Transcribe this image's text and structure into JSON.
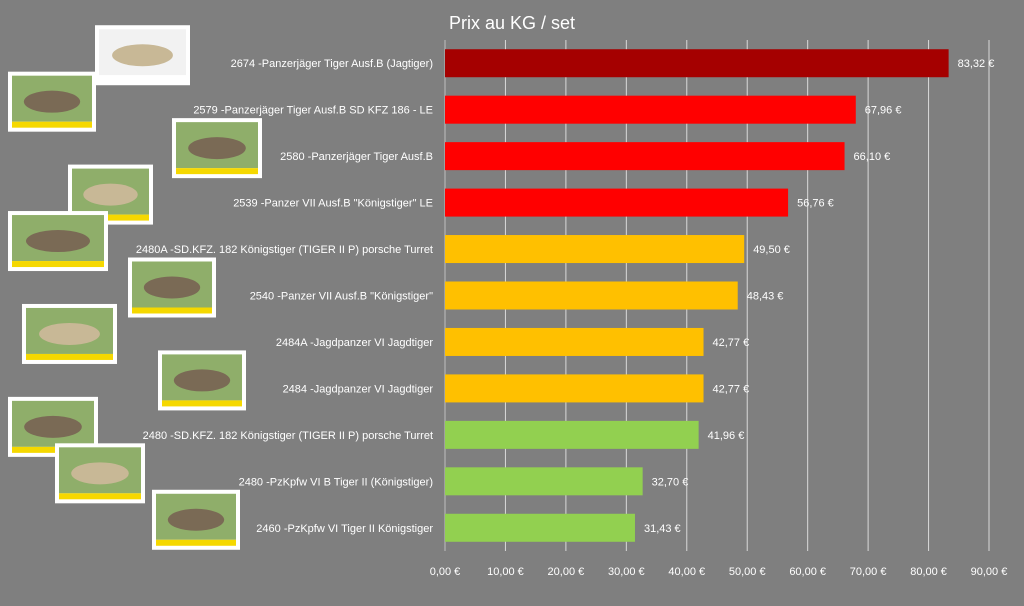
{
  "chart_data": {
    "type": "bar",
    "orientation": "horizontal",
    "title": "Prix au KG / set",
    "xlabel": "",
    "ylabel": "",
    "xlim": [
      0,
      90
    ],
    "grid": true,
    "legend": "none",
    "x_ticks": [
      "0,00 €",
      "10,00 €",
      "20,00 €",
      "30,00 €",
      "40,00 €",
      "50,00 €",
      "60,00 €",
      "70,00 €",
      "80,00 €",
      "90,00 €"
    ],
    "categories": [
      "2674 -Panzerjäger Tiger Ausf.B (Jagtiger)",
      "2579 -Panzerjäger Tiger Ausf.B SD KFZ 186 - LE",
      "2580 -Panzerjäger Tiger Ausf.B",
      "2539 -Panzer VII Ausf.B \"Königstiger\" LE",
      "2480A -SD.KFZ. 182 Königstiger (TIGER II P) porsche Turret",
      "2540 -Panzer VII Ausf.B \"Königstiger\"",
      "2484A -Jagdpanzer VI Jagdtiger",
      "2484 -Jagdpanzer VI Jagdtiger",
      "2480 -SD.KFZ. 182 Königstiger (TIGER II P) porsche Turret",
      "2480 -PzKpfw VI B Tiger II (Königstiger)",
      "2460 -PzKpfw VI Tiger II Königstiger"
    ],
    "values": [
      83.32,
      67.96,
      66.1,
      56.76,
      49.5,
      48.43,
      42.77,
      42.77,
      41.96,
      32.7,
      31.43
    ],
    "value_labels": [
      "83,32 €",
      "67,96 €",
      "66,10 €",
      "56,76 €",
      "49,50 €",
      "48,43 €",
      "42,77 €",
      "42,77 €",
      "41,96 €",
      "32,70 €",
      "31,43 €"
    ],
    "colors": [
      "#a50000",
      "#ff0000",
      "#ff0000",
      "#ff0000",
      "#ffc000",
      "#ffc000",
      "#ffc000",
      "#ffc000",
      "#92d050",
      "#92d050",
      "#92d050"
    ],
    "background": "#7f7f7f"
  }
}
